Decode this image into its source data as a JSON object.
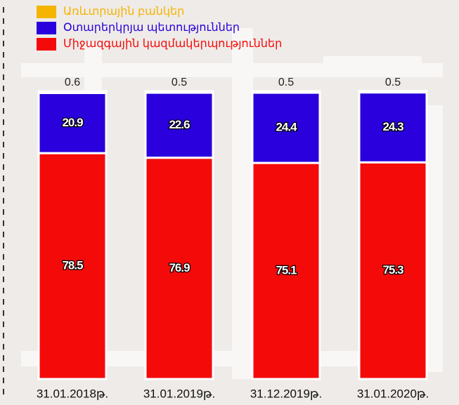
{
  "chart_data": {
    "type": "stacked_bar",
    "categories": [
      "31.01.2018թ.",
      "31.01.2019թ.",
      "31.12.2019թ.",
      "31.01.2020թ."
    ],
    "series": [
      {
        "name": "Առևտրային բանկեր",
        "color": "#f5b400",
        "values": [
          0.6,
          0.5,
          0.5,
          0.5
        ]
      },
      {
        "name": "Օտարերկրյա պետություններ",
        "color": "#2a00dc",
        "values": [
          20.9,
          22.6,
          24.4,
          24.3
        ]
      },
      {
        "name": "Միջազգային կազմակերպություններ",
        "color": "#f50a0a",
        "values": [
          78.5,
          76.9,
          75.1,
          75.3
        ]
      }
    ],
    "ylim": [
      0,
      100
    ]
  }
}
